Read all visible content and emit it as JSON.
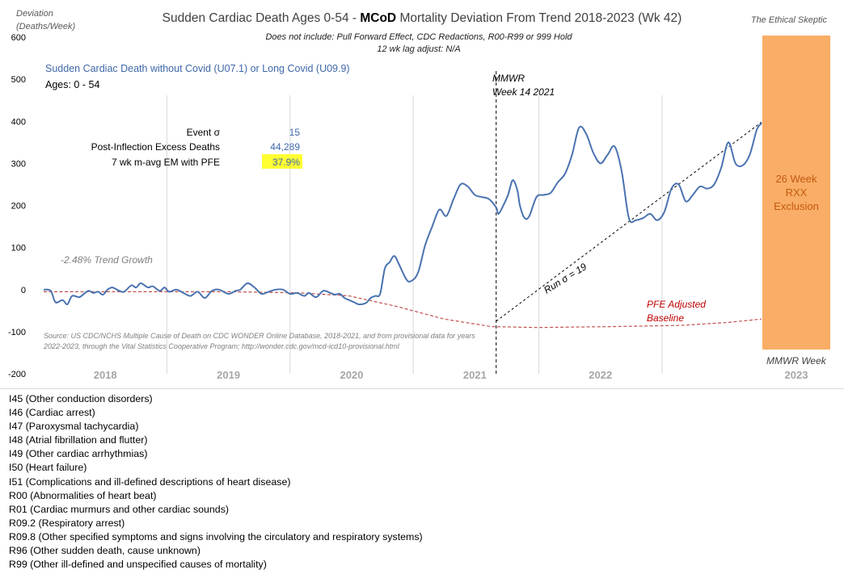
{
  "chart_data": {
    "type": "line",
    "title_prefix": "Sudden Cardiac Death Ages 0-54 - ",
    "title_bold": "MCoD",
    "title_suffix": " Mortality Deviation From Trend  2018-2023 (Wk 42)",
    "subtitle_lines": [
      "Does not include: Pull Forward Effect,  CDC Redactions, R00-R99 or 999 Hold",
      "12 wk lag adjust: N/A"
    ],
    "watermark": "The Ethical Skeptic",
    "ylabel_lines": [
      "Deviation",
      "(Deaths/Week)"
    ],
    "ylim": [
      -200,
      600
    ],
    "yticks": [
      "600",
      "500",
      "400",
      "300",
      "200",
      "100",
      "0",
      "-100",
      "-200"
    ],
    "year_labels": [
      "2018",
      "2019",
      "2020",
      "2021",
      "2022",
      "2023"
    ],
    "series_label": "Sudden Cardiac Death without Covid (U07.1) or Long Covid (U09.9)",
    "ages_label": "Ages: 0 - 54",
    "stats": [
      {
        "label": "Event σ",
        "value": "15"
      },
      {
        "label": "Post-Inflection Excess Deaths",
        "value": "44,289"
      },
      {
        "label": "7 wk m-avg EM with PFE",
        "value": "37.9%"
      }
    ],
    "trend_label": "-2.48% Trend Growth",
    "mmwr_label_lines": [
      "MMWR",
      "Week 14 2021"
    ],
    "run_label": "Run σ = 19",
    "pfe_label_lines": [
      "PFE Adjusted",
      "Baseline"
    ],
    "exclusion_label_lines": [
      "26 Week",
      "RXX",
      "Exclusion"
    ],
    "x_axis_label": "MMWR Week",
    "source_lines": [
      "Source: US CDC/NCHS Multiple Cause of Death on CDC WONDER Online Database, 2018-2021, and from provisional data for years",
      "2022-2023, through the Vital Statistics Cooperative Program; http://wonder.cdc.gov/mcd-icd10-provisional.html"
    ],
    "x_week_range": [
      1,
      304
    ],
    "main_series": {
      "color": "#4a72b0",
      "x": [
        1,
        4,
        6,
        9,
        11,
        13,
        16,
        18,
        20,
        22,
        24,
        26,
        28,
        30,
        33,
        35,
        38,
        40,
        42,
        45,
        47,
        50,
        52,
        54,
        57,
        60,
        63,
        66,
        69,
        72,
        75,
        79,
        82,
        84,
        87,
        90,
        93,
        96,
        99,
        102,
        105,
        108,
        111,
        113,
        116,
        119,
        122,
        124,
        126,
        128,
        130,
        132,
        134,
        137,
        139,
        141,
        143,
        145,
        147,
        149,
        151,
        154,
        156,
        159,
        162,
        165,
        168,
        171,
        174,
        177,
        180,
        183,
        186,
        189,
        192,
        193,
        195,
        197,
        199,
        201,
        202,
        204,
        206,
        209,
        212,
        215,
        218,
        221,
        224,
        227,
        230,
        233,
        236,
        239,
        242,
        245,
        248,
        251,
        254,
        257,
        260,
        263,
        266,
        269,
        272,
        275,
        278,
        281,
        284,
        287,
        290,
        293,
        296,
        299,
        302,
        304
      ],
      "y": [
        0,
        -3,
        -30,
        -25,
        -35,
        -15,
        -18,
        -10,
        -3,
        -8,
        -5,
        -12,
        0,
        5,
        -3,
        -5,
        10,
        5,
        15,
        5,
        8,
        -3,
        5,
        -5,
        0,
        -8,
        -15,
        -5,
        -20,
        -3,
        0,
        -10,
        -3,
        0,
        15,
        5,
        -10,
        -5,
        0,
        0,
        -10,
        -8,
        -15,
        -8,
        -18,
        -3,
        -8,
        -12,
        -10,
        -20,
        -25,
        -30,
        -35,
        -32,
        -20,
        -15,
        -10,
        50,
        65,
        80,
        60,
        25,
        20,
        40,
        105,
        150,
        190,
        175,
        215,
        250,
        245,
        225,
        220,
        215,
        195,
        180,
        200,
        225,
        260,
        235,
        200,
        170,
        175,
        220,
        225,
        230,
        255,
        275,
        320,
        385,
        370,
        325,
        300,
        320,
        340,
        280,
        170,
        165,
        170,
        180,
        165,
        185,
        240,
        250,
        210,
        225,
        245,
        240,
        250,
        290,
        350,
        300,
        295,
        320,
        380,
        395
      ]
    },
    "baseline": {
      "color": "#c0504d",
      "x": [
        1,
        40,
        80,
        110,
        130,
        150,
        170,
        190,
        210,
        240,
        270,
        290,
        304
      ],
      "y": [
        -5,
        -5,
        -5,
        -8,
        -15,
        -40,
        -70,
        -88,
        -90,
        -88,
        -85,
        -78,
        -70
      ]
    },
    "run_line": {
      "x": [
        192,
        304
      ],
      "y": [
        -75,
        398
      ]
    },
    "mmwr_week": 192,
    "exclusion_range": [
      280,
      304
    ]
  },
  "codes": [
    "I45 (Other conduction  disorders)",
    "I46 (Cardiac arrest)",
    "I47 (Paroxysmal tachycardia)",
    "I48 (Atrial fibrillation  and flutter)",
    "I49 (Other cardiac arrhythmias)",
    "I50 (Heart failure)",
    "I51 (Complications  and ill-defined  descriptions of heart disease)",
    "R00 (Abnormalities of heart beat)",
    "R01 (Cardiac murmurs and other cardiac sounds)",
    "R09.2 (Respiratory arrest)",
    "R09.8 (Other specified  symptoms and signs involving  the circulatory and respiratory systems)",
    "R96 (Other sudden  death, cause unknown)",
    "R99 (Other ill-defined  and unspecified causes of mortality)"
  ]
}
